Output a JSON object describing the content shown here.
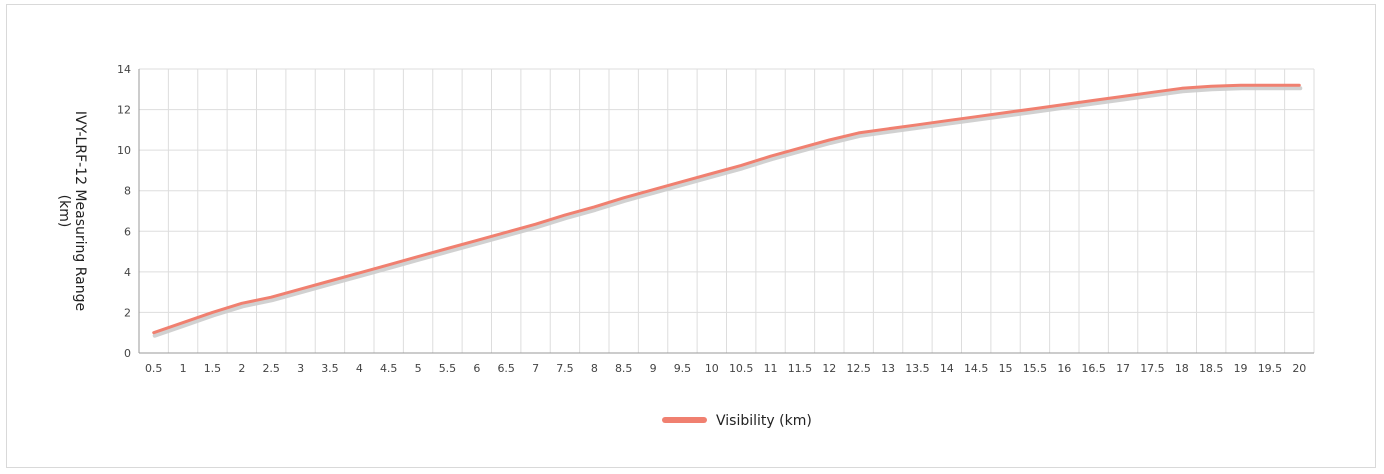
{
  "chart_data": {
    "type": "line",
    "ylabel_lines": [
      "IVY-LRF-12 Measuring Range",
      "(km)"
    ],
    "x": [
      "0.5",
      "1",
      "1.5",
      "2",
      "2.5",
      "3",
      "3.5",
      "4",
      "4.5",
      "5",
      "5.5",
      "6",
      "6.5",
      "7",
      "7.5",
      "8",
      "8.5",
      "9",
      "9.5",
      "10",
      "10.5",
      "11",
      "11.5",
      "12",
      "12.5",
      "13",
      "13.5",
      "14",
      "14.5",
      "15",
      "15.5",
      "16",
      "16.5",
      "17",
      "17.5",
      "18",
      "18.5",
      "19",
      "19.5",
      "20"
    ],
    "ylim": [
      0,
      14
    ],
    "yticks": [
      "0",
      "2",
      "4",
      "6",
      "8",
      "10",
      "12",
      "14"
    ],
    "grid": true,
    "legend_position": "bottom-center",
    "series": [
      {
        "name": "Visibility (km)",
        "color": "#f08070",
        "values": [
          1.0,
          1.5,
          2.0,
          2.45,
          2.75,
          3.15,
          3.55,
          3.95,
          4.35,
          4.75,
          5.15,
          5.55,
          5.95,
          6.35,
          6.8,
          7.2,
          7.65,
          8.05,
          8.45,
          8.85,
          9.25,
          9.7,
          10.1,
          10.5,
          10.85,
          11.05,
          11.25,
          11.45,
          11.65,
          11.85,
          12.05,
          12.25,
          12.45,
          12.65,
          12.85,
          13.05,
          13.15,
          13.2,
          13.2,
          13.2
        ]
      }
    ]
  }
}
